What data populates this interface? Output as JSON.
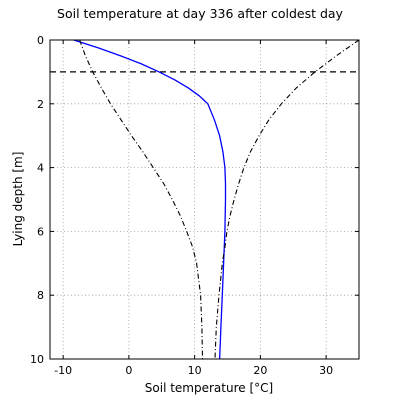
{
  "chart_data": {
    "type": "line",
    "title": "Soil temperature at day 336 after coldest day",
    "xlabel": "Soil temperature [°C]",
    "ylabel": "Lying depth [m]",
    "xlim": [
      -12,
      35
    ],
    "ylim": [
      10,
      0
    ],
    "y_inverted": true,
    "grid": true,
    "xticks": [
      -10,
      0,
      10,
      20,
      30
    ],
    "yticks": [
      0,
      2,
      4,
      6,
      8,
      10
    ],
    "colors": {
      "temperature": "#0000ff",
      "envelope": "#000000",
      "reference": "#000000"
    },
    "series": [
      {
        "style": "solid",
        "x": [
          -8.4,
          -4.6,
          -1.2,
          1.9,
          4.6,
          7.0,
          9.0,
          10.7,
          12.0,
          13.0,
          13.8,
          14.3,
          14.6,
          14.7,
          14.7,
          14.6,
          14.4,
          14.2,
          14.0,
          13.9,
          13.8
        ],
        "y": [
          0,
          0.25,
          0.5,
          0.75,
          1.0,
          1.25,
          1.5,
          1.75,
          2.0,
          2.5,
          3.0,
          3.5,
          4.0,
          4.5,
          5.0,
          6.0,
          7.0,
          8.0,
          9.0,
          9.5,
          10.0
        ]
      },
      {
        "style": "dashdot",
        "x": [
          -7.5,
          -6.6,
          -5.5,
          -4.2,
          -2.8,
          -1.2,
          0.4,
          2.1,
          3.7,
          5.3,
          6.6,
          7.8,
          8.8,
          9.7,
          10.3,
          10.9,
          11.1,
          11.2
        ],
        "y": [
          0,
          0.5,
          1.0,
          1.5,
          2.0,
          2.5,
          3.0,
          3.5,
          4.0,
          4.5,
          5.0,
          5.5,
          6.0,
          6.5,
          7.0,
          8.0,
          9.0,
          10.0
        ]
      },
      {
        "style": "dashdot",
        "x": [
          35.0,
          31.5,
          28.3,
          25.5,
          23.2,
          21.3,
          19.8,
          18.5,
          17.5,
          16.7,
          16.0,
          15.4,
          14.9,
          14.6,
          14.2,
          13.7,
          13.3,
          13.1
        ],
        "y": [
          0,
          0.5,
          1.0,
          1.5,
          2.0,
          2.5,
          3.0,
          3.5,
          4.0,
          4.5,
          5.0,
          5.5,
          6.0,
          6.5,
          7.0,
          8.0,
          9.0,
          10.0
        ]
      }
    ],
    "reference_lines": [
      {
        "orientation": "horizontal",
        "y": 1,
        "style": "dashed"
      }
    ]
  }
}
